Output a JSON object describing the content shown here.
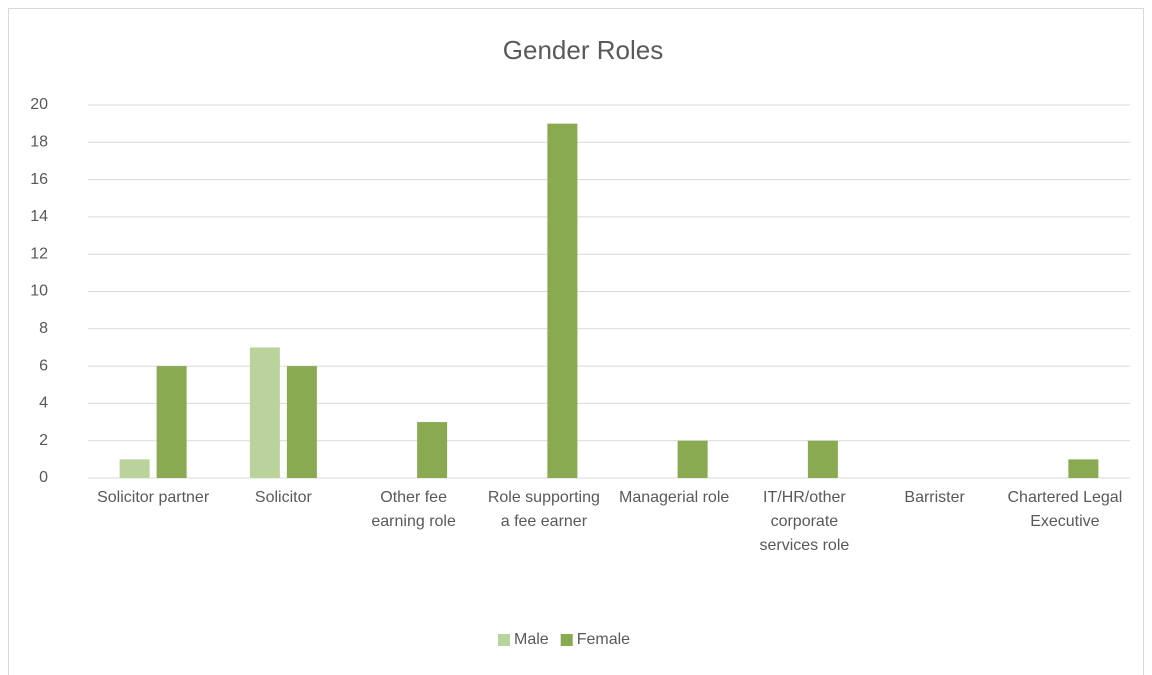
{
  "chart_data": {
    "type": "bar",
    "title": "Gender Roles",
    "categories": [
      "Solicitor partner",
      "Solicitor",
      "Other fee earning role",
      "Role supporting a fee earner",
      "Managerial role",
      "IT/HR/other corporate services role",
      "Barrister",
      "Chartered Legal Executive"
    ],
    "series": [
      {
        "name": "Male",
        "color": "#bad29b",
        "values": [
          1,
          7,
          0,
          0,
          0,
          0,
          0,
          0
        ]
      },
      {
        "name": "Female",
        "color": "#89aa51",
        "values": [
          6,
          6,
          3,
          19,
          2,
          2,
          0,
          1
        ]
      }
    ],
    "ylim": [
      0,
      20
    ],
    "yticks": [
      0,
      2,
      4,
      6,
      8,
      10,
      12,
      14,
      16,
      18,
      20
    ],
    "grid": true,
    "legend": "bottom"
  }
}
